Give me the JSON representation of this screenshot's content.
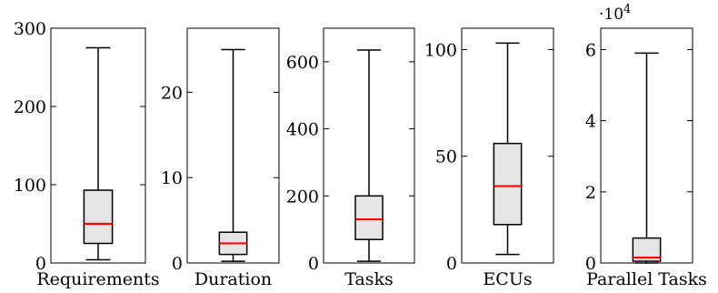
{
  "chart_data": [
    {
      "type": "boxplot",
      "xlabel": "Requirements",
      "yticks": [
        0,
        100,
        200,
        300
      ],
      "ytick_labels": [
        "0",
        "100",
        "200",
        "300"
      ],
      "ylim": [
        0,
        300
      ],
      "box": {
        "min": 4,
        "q1": 25,
        "median": 50,
        "q3": 93,
        "max": 275
      }
    },
    {
      "type": "boxplot",
      "xlabel": "Duration",
      "yticks": [
        0,
        10,
        20
      ],
      "ytick_labels": [
        "0",
        "10",
        "20"
      ],
      "ylim": [
        0,
        27.5
      ],
      "box": {
        "min": 0.2,
        "q1": 1.0,
        "median": 2.3,
        "q3": 3.6,
        "max": 25
      }
    },
    {
      "type": "boxplot",
      "xlabel": "Tasks",
      "yticks": [
        0,
        200,
        400,
        600
      ],
      "ytick_labels": [
        "0",
        "200",
        "400",
        "600"
      ],
      "ylim": [
        0,
        700
      ],
      "box": {
        "min": 5,
        "q1": 70,
        "median": 130,
        "q3": 200,
        "max": 635
      }
    },
    {
      "type": "boxplot",
      "xlabel": "ECUs",
      "yticks": [
        0,
        50,
        100
      ],
      "ytick_labels": [
        "0",
        "50",
        "100"
      ],
      "ylim": [
        0,
        110
      ],
      "box": {
        "min": 4,
        "q1": 18,
        "median": 36,
        "q3": 56,
        "max": 103
      }
    },
    {
      "type": "boxplot",
      "xlabel": "Parallel Tasks",
      "yticks": [
        0,
        2,
        4,
        6
      ],
      "ytick_labels": [
        "0",
        "2",
        "4",
        "6"
      ],
      "ylim": [
        0,
        6.6
      ],
      "scale_label": "·10",
      "scale_exponent": "4",
      "box": {
        "min": 0,
        "q1": 0.05,
        "median": 0.15,
        "q3": 0.7,
        "max": 5.9
      }
    }
  ],
  "colors": {
    "box_fill": "#e5e5e5",
    "median": "#ff0000",
    "stroke": "#000000"
  }
}
